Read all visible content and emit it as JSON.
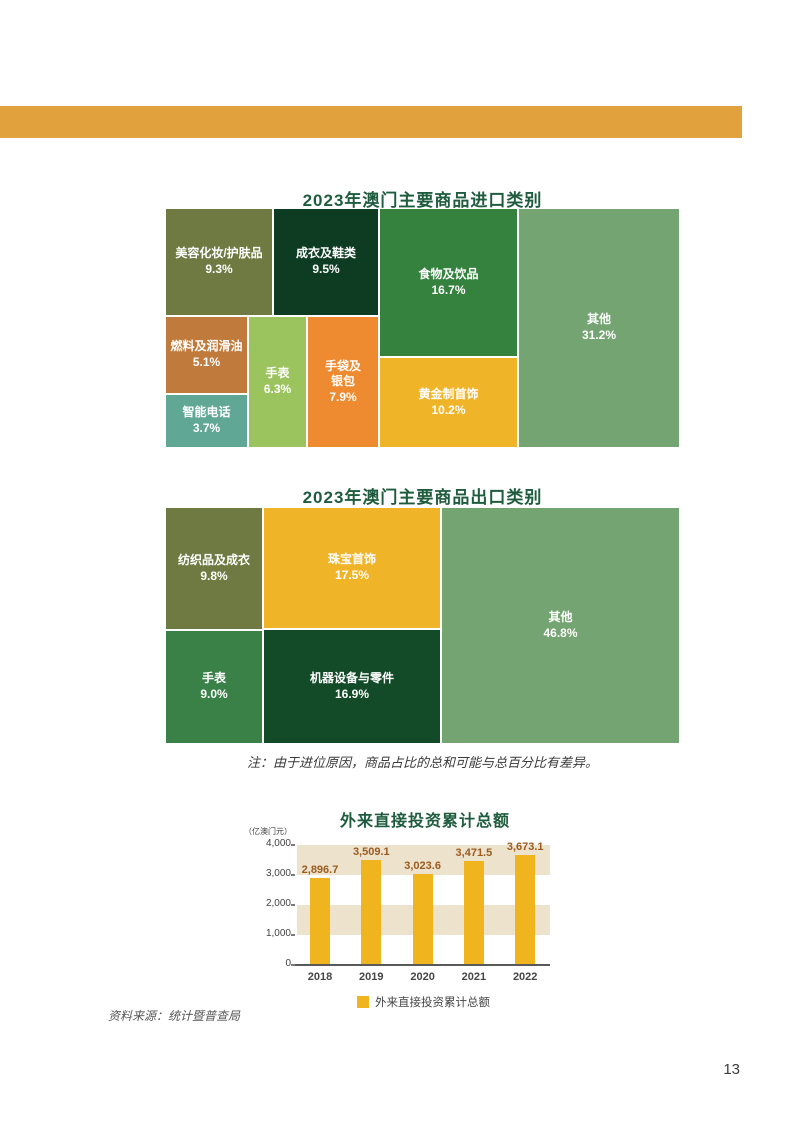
{
  "banner_color": "#e1a23d",
  "chart_data": [
    {
      "type": "treemap",
      "title": "2023年澳门主要商品进口类别",
      "title_color": "#1f5c3e",
      "items": [
        {
          "label": "美容化妆/护肤品",
          "pct": "9.3%",
          "value": 9.3,
          "color": "#6e7a41"
        },
        {
          "label": "成衣及鞋类",
          "pct": "9.5%",
          "value": 9.5,
          "color": "#0d3c22"
        },
        {
          "label": "食物及饮品",
          "pct": "16.7%",
          "value": 16.7,
          "color": "#35823f"
        },
        {
          "label": "黄金制首饰",
          "pct": "10.2%",
          "value": 10.2,
          "color": "#f0b429"
        },
        {
          "label": "其他",
          "pct": "31.2%",
          "value": 31.2,
          "color": "#73a471"
        },
        {
          "label": "燃料及润滑油",
          "pct": "5.1%",
          "value": 5.1,
          "color": "#c07a3b"
        },
        {
          "label": "智能电话",
          "pct": "3.7%",
          "value": 3.7,
          "color": "#61a795"
        },
        {
          "label": "手表",
          "pct": "6.3%",
          "value": 6.3,
          "color": "#9cc45e"
        },
        {
          "label": "手袋及银包",
          "pct": "7.9%",
          "value": 7.9,
          "color": "#ee8a2f"
        }
      ]
    },
    {
      "type": "treemap",
      "title": "2023年澳门主要商品出口类别",
      "title_color": "#1f5c3e",
      "items": [
        {
          "label": "纺织品及成衣",
          "pct": "9.8%",
          "value": 9.8,
          "color": "#6e7a41"
        },
        {
          "label": "手表",
          "pct": "9.0%",
          "value": 9.0,
          "color": "#3a8148"
        },
        {
          "label": "珠宝首饰",
          "pct": "17.5%",
          "value": 17.5,
          "color": "#f0b429"
        },
        {
          "label": "机器设备与零件",
          "pct": "16.9%",
          "value": 16.9,
          "color": "#134b29"
        },
        {
          "label": "其他",
          "pct": "46.8%",
          "value": 46.8,
          "color": "#73a471"
        }
      ]
    },
    {
      "type": "bar",
      "title": "外来直接投资累计总额",
      "unit_label": "（亿澳门元）",
      "categories": [
        "2018",
        "2019",
        "2020",
        "2021",
        "2022"
      ],
      "values": [
        2896.7,
        3509.1,
        3023.6,
        3471.5,
        3673.1
      ],
      "value_labels": [
        "2,896.7",
        "3,509.1",
        "3,023.6",
        "3,471.5",
        "3,673.1"
      ],
      "ylim": [
        0,
        4000
      ],
      "ytick_values": [
        0,
        1000,
        2000,
        3000,
        4000
      ],
      "ytick_labels": [
        "0",
        "1,000",
        "2,000",
        "3,000",
        "4,000"
      ],
      "band_ranges": [
        [
          1000,
          2000
        ],
        [
          3000,
          4000
        ]
      ],
      "legend": "外来直接投资累计总额",
      "grid": false,
      "legend_position": "bottom",
      "colors": {
        "bar": "#f0b41e",
        "band": "#ede2cb",
        "value_label": "#9a5b20",
        "axis": "#58595b"
      }
    }
  ],
  "note": "注：由于进位原因，商品占比的总和可能与总百分比有差异。",
  "source": "资料来源：统计暨普查局",
  "page_number": "13"
}
